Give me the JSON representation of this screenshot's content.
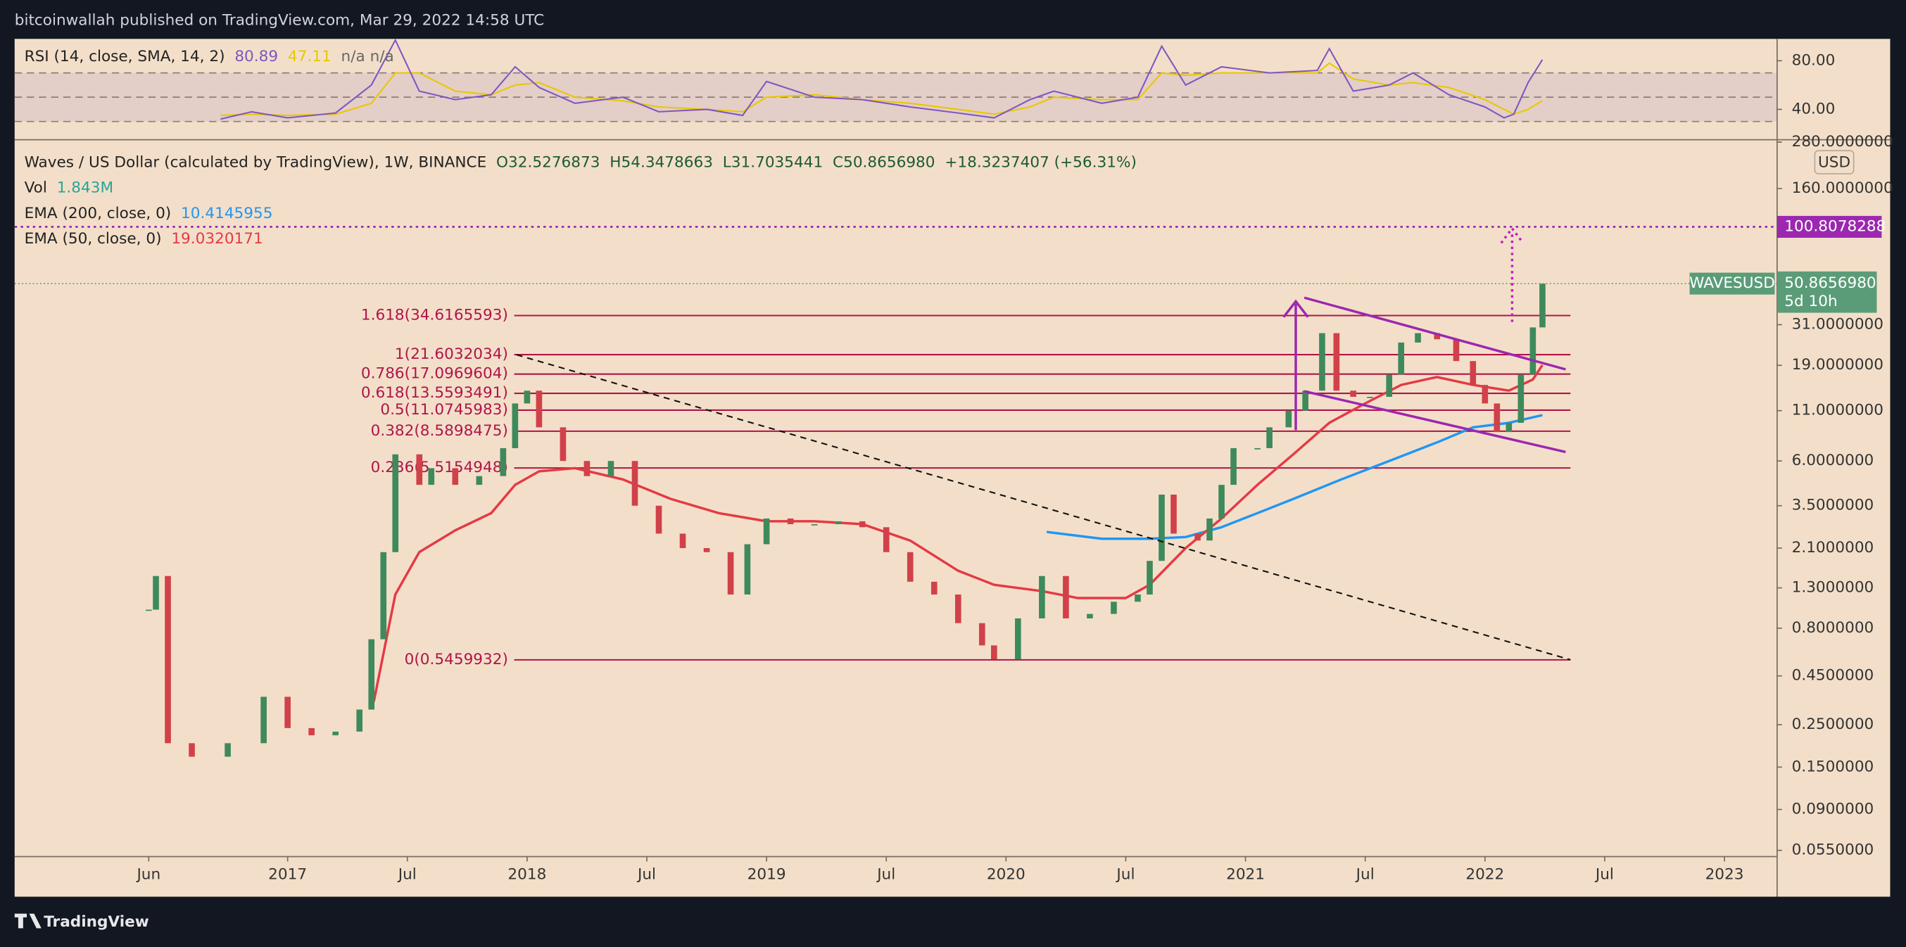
{
  "header": {
    "text": "bitcoinwallah published on TradingView.com, Mar 29, 2022 14:58 UTC"
  },
  "footer": {
    "brand": "TradingView"
  },
  "chart_data": {
    "type": "candlestick",
    "title": "Waves / US Dollar (calculated by TradingView), 1W, BINANCE",
    "ohlc_labels": [
      "O32.5276873",
      "H54.3478663",
      "L31.7035441",
      "C50.8656980",
      "+18.3237407 (+56.31%)"
    ],
    "volume_legend": {
      "name": "Vol",
      "label": "1.843M"
    },
    "x": [
      2016.42,
      2016.45,
      2016.5,
      2016.6,
      2016.75,
      2016.9,
      2017.0,
      2017.1,
      2017.2,
      2017.3,
      2017.35,
      2017.4,
      2017.45,
      2017.55,
      2017.6,
      2017.7,
      2017.8,
      2017.9,
      2017.95,
      2018.0,
      2018.05,
      2018.15,
      2018.25,
      2018.35,
      2018.45,
      2018.55,
      2018.65,
      2018.75,
      2018.85,
      2018.92,
      2019.0,
      2019.1,
      2019.2,
      2019.3,
      2019.4,
      2019.5,
      2019.6,
      2019.7,
      2019.8,
      2019.9,
      2019.95,
      2020.05,
      2020.15,
      2020.25,
      2020.35,
      2020.45,
      2020.55,
      2020.6,
      2020.65,
      2020.7,
      2020.8,
      2020.85,
      2020.9,
      2020.95,
      2021.05,
      2021.1,
      2021.18,
      2021.25,
      2021.32,
      2021.38,
      2021.45,
      2021.52,
      2021.6,
      2021.65,
      2021.72,
      2021.8,
      2021.88,
      2021.95,
      2022.0,
      2022.05,
      2022.1,
      2022.15,
      2022.2,
      2022.24
    ],
    "values": [
      1.0,
      1.5,
      0.2,
      0.17,
      0.2,
      0.35,
      0.24,
      0.22,
      0.23,
      0.3,
      0.7,
      2.0,
      6.5,
      4.5,
      5.5,
      4.5,
      5,
      7,
      12,
      14,
      9,
      6,
      5,
      6,
      3.5,
      2.5,
      2.1,
      2.0,
      1.2,
      2.2,
      3.0,
      2.8,
      2.8,
      2.9,
      2.7,
      2.0,
      1.4,
      1.2,
      0.85,
      0.65,
      0.55,
      0.9,
      1.5,
      0.9,
      0.95,
      1.1,
      1.2,
      1.8,
      4.0,
      2.5,
      2.3,
      3.0,
      4.5,
      7,
      7,
      9,
      11,
      14,
      28,
      14,
      13,
      13,
      17,
      25,
      28,
      26,
      20,
      15,
      12,
      8.5,
      9.5,
      17,
      30,
      50.865698
    ],
    "up_color": "#3e8a5c",
    "down_color": "#d1414a",
    "ema": [
      {
        "name": "EMA (200, close, 0)",
        "color": "#2196f3",
        "x": [
          2020.17,
          2020.4,
          2020.6,
          2020.75,
          2020.9,
          2021.05,
          2021.2,
          2021.4,
          2021.6,
          2021.8,
          2021.95,
          2022.1,
          2022.24
        ],
        "values": [
          2.55,
          2.35,
          2.35,
          2.4,
          2.7,
          3.2,
          3.8,
          4.8,
          6.0,
          7.5,
          9.0,
          9.5,
          10.4145955
        ]
      },
      {
        "name": "EMA (50, close, 0)",
        "color": "#e53945",
        "x": [
          2017.36,
          2017.45,
          2017.55,
          2017.7,
          2017.85,
          2017.95,
          2018.05,
          2018.2,
          2018.4,
          2018.6,
          2018.8,
          2019.0,
          2019.2,
          2019.4,
          2019.6,
          2019.8,
          2019.95,
          2020.15,
          2020.3,
          2020.5,
          2020.6,
          2020.75,
          2020.9,
          2021.05,
          2021.2,
          2021.35,
          2021.5,
          2021.65,
          2021.8,
          2021.95,
          2022.1,
          2022.2,
          2022.24
        ],
        "values": [
          0.33,
          1.2,
          2.0,
          2.6,
          3.2,
          4.5,
          5.3,
          5.5,
          4.8,
          3.8,
          3.2,
          2.9,
          2.9,
          2.8,
          2.3,
          1.6,
          1.35,
          1.25,
          1.15,
          1.15,
          1.35,
          2.1,
          3.0,
          4.5,
          6.5,
          9.5,
          12,
          15,
          16.5,
          15,
          14,
          16,
          19.0320171
        ]
      }
    ],
    "fib_levels": [
      {
        "value": 34.6165593,
        "label": "1.618(34.6165593)"
      },
      {
        "value": 21.6032034,
        "label": "1(21.6032034)"
      },
      {
        "value": 17.0969604,
        "label": "0.786(17.0969604)"
      },
      {
        "value": 13.5593491,
        "label": "0.618(13.5593491)"
      },
      {
        "value": 11.0745983,
        "label": "0.5(11.0745983)"
      },
      {
        "value": 8.5898475,
        "label": "0.382(8.5898475)"
      },
      {
        "value": 5.5154948,
        "label": "0.236(5.5154948)"
      },
      {
        "value": 0.5459932,
        "label": "0(0.5459932)"
      }
    ],
    "fib_color": "#b0144a",
    "target": {
      "value": 100.8078288,
      "color": "#9c27b0"
    },
    "price_tag": {
      "value": 50.865698,
      "label": "50.8656980",
      "countdown": "5d 10h",
      "symbol": "WAVESUSD",
      "color": "#5b9c78"
    },
    "currency": "USD",
    "log_scale": true,
    "xlim": [
      2015.86,
      2023.22
    ],
    "xticks": [
      {
        "value": 2016.42,
        "label": "Jun"
      },
      2017,
      {
        "value": 2017.5,
        "label": "Jul"
      },
      2018,
      {
        "value": 2018.5,
        "label": "Jul"
      },
      2019,
      {
        "value": 2019.5,
        "label": "Jul"
      },
      2020,
      {
        "value": 2020.5,
        "label": "Jul"
      },
      2021,
      {
        "value": 2021.5,
        "label": "Jul"
      },
      2022,
      {
        "value": 2022.5,
        "label": "Jul"
      },
      2023
    ],
    "ylim": [
      0.051,
      288
    ],
    "yticks": [
      {
        "value": 280,
        "label": "280.0000000"
      },
      {
        "value": 160,
        "label": "160.0000000"
      },
      {
        "value": 31,
        "label": "31.0000000"
      },
      {
        "value": 19,
        "label": "19.0000000"
      },
      {
        "value": 11,
        "label": "11.0000000"
      },
      {
        "value": 6,
        "label": "6.0000000"
      },
      {
        "value": 3.5,
        "label": "3.5000000"
      },
      {
        "value": 2.1,
        "label": "2.1000000"
      },
      {
        "value": 1.3,
        "label": "1.3000000"
      },
      {
        "value": 0.8,
        "label": "0.8000000"
      },
      {
        "value": 0.45,
        "label": "0.4500000"
      },
      {
        "value": 0.25,
        "label": "0.2500000"
      },
      {
        "value": 0.15,
        "label": "0.1500000"
      },
      {
        "value": 0.09,
        "label": "0.0900000"
      },
      {
        "value": 0.055,
        "label": "0.0550000"
      }
    ],
    "rsi": {
      "title": "RSI (14, close, SMA, 14, 2)",
      "na_labels": [
        "n/a",
        "n/a"
      ],
      "x": [
        2016.72,
        2016.85,
        2017.0,
        2017.2,
        2017.35,
        2017.45,
        2017.55,
        2017.7,
        2017.85,
        2017.95,
        2018.05,
        2018.2,
        2018.4,
        2018.55,
        2018.75,
        2018.9,
        2019.0,
        2019.2,
        2019.4,
        2019.6,
        2019.8,
        2019.95,
        2020.1,
        2020.2,
        2020.4,
        2020.55,
        2020.65,
        2020.75,
        2020.9,
        2021.1,
        2021.3,
        2021.35,
        2021.45,
        2021.6,
        2021.7,
        2021.85,
        2022.0,
        2022.08,
        2022.12,
        2022.18,
        2022.24
      ],
      "series": [
        {
          "name": "RSI",
          "color": "#7e57c2",
          "values": [
            32,
            38,
            33,
            37,
            60,
            97,
            55,
            48,
            52,
            75,
            58,
            45,
            50,
            38,
            40,
            35,
            63,
            50,
            48,
            42,
            37,
            33,
            48,
            55,
            45,
            50,
            92,
            60,
            75,
            70,
            72,
            90,
            55,
            60,
            70,
            52,
            42,
            33,
            36,
            62,
            80.89
          ]
        },
        {
          "name": "SMA",
          "color": "#e8c800",
          "values": [
            35,
            36,
            35,
            36,
            45,
            70,
            70,
            55,
            52,
            60,
            62,
            50,
            47,
            42,
            40,
            38,
            50,
            52,
            48,
            45,
            40,
            36,
            42,
            50,
            48,
            48,
            70,
            68,
            70,
            70,
            70,
            78,
            65,
            60,
            62,
            58,
            48,
            40,
            36,
            40,
            47.11
          ]
        }
      ],
      "bands": [
        70,
        50,
        30
      ],
      "ylim": [
        15,
        98
      ],
      "yticks": [
        {
          "value": 80,
          "label": "80.00"
        },
        {
          "value": 40,
          "label": "40.00"
        }
      ]
    }
  }
}
